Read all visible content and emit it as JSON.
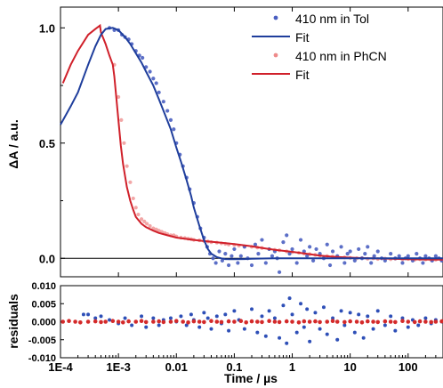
{
  "chart_data": [
    {
      "panel": "main",
      "type": "scatter",
      "ylabel": "ΔA / a.u.",
      "xlabel": "",
      "xscale": "log",
      "xlim": [
        0.0001,
        400
      ],
      "ylim": [
        -0.08,
        1.09
      ],
      "y_ticks": [
        0.0,
        0.5,
        1.0
      ],
      "y_tick_labels": [
        "0.0",
        "0.5",
        "1.0"
      ],
      "zero_line": true,
      "grid": false,
      "legend_position": "top-right",
      "legend": [
        {
          "label": "410 nm in Tol",
          "kind": "points",
          "color": "#4a5fc1"
        },
        {
          "label": "Fit",
          "kind": "line",
          "color": "#1f3e9c"
        },
        {
          "label": "410 nm in PhCN",
          "kind": "points",
          "color": "#ee8a8a"
        },
        {
          "label": "Fit",
          "kind": "line",
          "color": "#d0202a"
        }
      ],
      "series": [
        {
          "name": "410 nm in Tol",
          "kind": "points",
          "color": "#4a5fc1",
          "x": [
            0.0007,
            0.00085,
            0.001,
            0.00115,
            0.0013,
            0.0015,
            0.0017,
            0.002,
            0.0023,
            0.0026,
            0.003,
            0.0035,
            0.004,
            0.0045,
            0.005,
            0.006,
            0.007,
            0.008,
            0.009,
            0.01,
            0.0115,
            0.013,
            0.015,
            0.017,
            0.02,
            0.023,
            0.026,
            0.03,
            0.034,
            0.038,
            0.043,
            0.048,
            0.055,
            0.062,
            0.07,
            0.08,
            0.09,
            0.1,
            0.115,
            0.13,
            0.15,
            0.17,
            0.2,
            0.23,
            0.26,
            0.3,
            0.35,
            0.4,
            0.45,
            0.5,
            0.55,
            0.6,
            0.7,
            0.8,
            0.9,
            1.0,
            1.2,
            1.4,
            1.6,
            1.8,
            2.0,
            2.3,
            2.6,
            3.0,
            3.5,
            4.0,
            4.5,
            5.0,
            6.0,
            7.0,
            8.0,
            9.0,
            10,
            12,
            14,
            16,
            18,
            20,
            23,
            26,
            30,
            35,
            40,
            50,
            60,
            70,
            80,
            90,
            100,
            120,
            140,
            160,
            180,
            200,
            230,
            260,
            300,
            340,
            380
          ],
          "y": [
            1.0,
            0.99,
            0.99,
            0.97,
            0.96,
            0.95,
            0.93,
            0.9,
            0.88,
            0.87,
            0.83,
            0.81,
            0.78,
            0.76,
            0.72,
            0.68,
            0.64,
            0.6,
            0.56,
            0.5,
            0.45,
            0.4,
            0.35,
            0.3,
            0.24,
            0.18,
            0.13,
            0.09,
            0.05,
            0.02,
            0.0,
            -0.02,
            0.03,
            -0.01,
            0.02,
            -0.03,
            0.01,
            0.04,
            -0.02,
            0.01,
            0.05,
            0.0,
            -0.03,
            0.06,
            0.02,
            0.08,
            -0.02,
            0.04,
            0.01,
            0.03,
            0.0,
            -0.06,
            0.07,
            0.1,
            0.02,
            0.04,
            -0.02,
            0.08,
            0.03,
            0.01,
            0.05,
            -0.01,
            0.04,
            0.02,
            0.0,
            0.06,
            -0.03,
            0.03,
            0.01,
            0.05,
            -0.02,
            0.02,
            0.03,
            -0.01,
            0.04,
            0.0,
            0.02,
            0.05,
            -0.02,
            0.01,
            0.03,
            0.0,
            -0.01,
            0.02,
            0.0,
            0.01,
            -0.02,
            0.0,
            0.01,
            -0.01,
            0.02,
            0.0,
            -0.02,
            0.01,
            0.0,
            -0.01,
            0.01,
            0.0,
            -0.01
          ]
        },
        {
          "name": "Fit",
          "kind": "line",
          "color": "#1f3e9c",
          "x": [
            0.0001,
            0.00015,
            0.0002,
            0.0003,
            0.0004,
            0.0005,
            0.0006,
            0.0008,
            0.001,
            0.0013,
            0.0016,
            0.002,
            0.0025,
            0.003,
            0.004,
            0.005,
            0.006,
            0.008,
            0.01,
            0.012,
            0.015,
            0.018,
            0.02,
            0.025,
            0.03,
            0.035,
            0.04,
            0.05,
            0.06,
            0.07,
            0.08,
            0.1,
            0.15,
            0.2,
            0.3,
            0.5,
            1,
            2,
            5,
            10,
            20,
            50,
            100,
            200,
            400
          ],
          "y": [
            0.58,
            0.66,
            0.72,
            0.84,
            0.92,
            0.97,
            0.995,
            1.0,
            0.99,
            0.96,
            0.93,
            0.89,
            0.85,
            0.81,
            0.75,
            0.69,
            0.64,
            0.56,
            0.48,
            0.42,
            0.34,
            0.27,
            0.22,
            0.14,
            0.08,
            0.04,
            0.02,
            0.005,
            0.0,
            -0.003,
            -0.004,
            -0.004,
            -0.003,
            -0.002,
            -0.001,
            0.0,
            0.0,
            0.0,
            0.0,
            0.0,
            0.0,
            0.0,
            0.0,
            0.0,
            0.0
          ]
        },
        {
          "name": "410 nm in PhCN",
          "kind": "points",
          "color": "#ee8a8a",
          "x": [
            0.00085,
            0.001,
            0.00112,
            0.00125,
            0.0014,
            0.0016,
            0.0018,
            0.002,
            0.0022,
            0.0025,
            0.0028,
            0.0031,
            0.0035,
            0.004,
            0.0045,
            0.005,
            0.0056,
            0.0063,
            0.007,
            0.008,
            0.009,
            0.01,
            0.012,
            0.014,
            0.016,
            0.018,
            0.02,
            0.025,
            0.03,
            0.035,
            0.04,
            0.05,
            0.06,
            0.07,
            0.08,
            0.1,
            0.12,
            0.15,
            0.2,
            0.25,
            0.3,
            0.4,
            0.5,
            0.6,
            0.8,
            1.0,
            1.3,
            1.6,
            2.0,
            2.5,
            3.0,
            4.0,
            5.0,
            6.0,
            8.0,
            10,
            13,
            16,
            20,
            25,
            30,
            40,
            50,
            60,
            80,
            100,
            130,
            160,
            200,
            250,
            300,
            380
          ],
          "y": [
            0.84,
            0.7,
            0.6,
            0.5,
            0.4,
            0.33,
            0.26,
            0.22,
            0.19,
            0.17,
            0.16,
            0.15,
            0.14,
            0.13,
            0.125,
            0.12,
            0.115,
            0.11,
            0.105,
            0.1,
            0.1,
            0.095,
            0.09,
            0.088,
            0.085,
            0.083,
            0.08,
            0.078,
            0.075,
            0.073,
            0.07,
            0.068,
            0.065,
            0.063,
            0.06,
            0.058,
            0.055,
            0.052,
            0.05,
            0.047,
            0.045,
            0.04,
            0.037,
            0.035,
            0.03,
            0.027,
            0.024,
            0.021,
            0.018,
            0.015,
            0.012,
            0.01,
            0.008,
            0.006,
            0.004,
            0.002,
            0.0,
            0.001,
            -0.002,
            0.0,
            -0.003,
            -0.001,
            -0.004,
            -0.002,
            -0.005,
            -0.003,
            -0.006,
            -0.004,
            -0.005,
            -0.007,
            -0.006,
            -0.008
          ]
        },
        {
          "name": "Fit",
          "kind": "line",
          "color": "#d0202a",
          "x": [
            0.00011,
            0.00015,
            0.0002,
            0.0003,
            0.0004,
            0.00048,
            0.0005,
            0.0006,
            0.0007,
            0.0008,
            0.00085,
            0.0009,
            0.001,
            0.0011,
            0.0012,
            0.0014,
            0.0016,
            0.0018,
            0.002,
            0.0025,
            0.003,
            0.004,
            0.005,
            0.007,
            0.01,
            0.02,
            0.03,
            0.05,
            0.1,
            0.2,
            0.3,
            0.5,
            1,
            2,
            3,
            5,
            10,
            20,
            50,
            100,
            200,
            400
          ],
          "y": [
            0.76,
            0.84,
            0.9,
            0.97,
            0.995,
            1.01,
            0.98,
            0.93,
            0.88,
            0.84,
            0.79,
            0.72,
            0.6,
            0.49,
            0.41,
            0.31,
            0.25,
            0.21,
            0.18,
            0.15,
            0.135,
            0.12,
            0.11,
            0.1,
            0.09,
            0.08,
            0.075,
            0.07,
            0.062,
            0.052,
            0.045,
            0.037,
            0.028,
            0.018,
            0.012,
            0.007,
            0.003,
            0.0,
            -0.002,
            -0.004,
            -0.005,
            -0.006
          ]
        }
      ]
    },
    {
      "panel": "residuals",
      "type": "scatter",
      "ylabel": "residuals",
      "xlabel": "Time / µs",
      "xscale": "log",
      "xlim": [
        0.0001,
        400
      ],
      "ylim": [
        -0.01,
        0.01
      ],
      "y_ticks": [
        -0.01,
        -0.005,
        0.0,
        0.005,
        0.01
      ],
      "y_tick_labels": [
        "-0.010",
        "-0.005",
        "0.000",
        "0.005",
        "0.010"
      ],
      "x_ticks": [
        0.0001,
        0.001,
        0.01,
        0.1,
        1,
        10,
        100
      ],
      "x_tick_labels": [
        "1E-4",
        "1E-3",
        "0.01",
        "0.1",
        "1",
        "10",
        "100"
      ],
      "grid": false,
      "series": [
        {
          "kind": "points",
          "color": "#2e4fb7",
          "x": [
            0.00025,
            0.0003,
            0.0004,
            0.0005,
            0.0007,
            0.001,
            0.0013,
            0.0017,
            0.002,
            0.0025,
            0.003,
            0.004,
            0.005,
            0.006,
            0.008,
            0.01,
            0.012,
            0.015,
            0.018,
            0.02,
            0.025,
            0.03,
            0.035,
            0.04,
            0.05,
            0.06,
            0.07,
            0.08,
            0.1,
            0.12,
            0.15,
            0.2,
            0.25,
            0.3,
            0.35,
            0.4,
            0.5,
            0.6,
            0.7,
            0.8,
            0.9,
            1.0,
            1.2,
            1.4,
            1.6,
            1.8,
            2.0,
            2.5,
            3.0,
            3.5,
            4.0,
            5.0,
            6.0,
            7.0,
            8.0,
            10,
            12,
            14,
            17,
            20,
            25,
            30,
            40,
            50,
            60,
            80,
            100,
            120,
            150,
            200,
            250,
            300,
            380
          ],
          "y": [
            0.002,
            0.002,
            0.001,
            0.0015,
            0.0005,
            -0.0005,
            0.001,
            -0.001,
            0.0,
            0.0015,
            -0.0015,
            0.001,
            -0.001,
            0.0005,
            0.001,
            0.0,
            0.0015,
            -0.001,
            0.002,
            0.0005,
            -0.0015,
            0.0025,
            0.001,
            -0.002,
            0.0015,
            -0.0005,
            0.002,
            -0.0025,
            0.003,
            0.0005,
            -0.002,
            0.0035,
            -0.003,
            0.0015,
            -0.004,
            0.003,
            0.001,
            -0.0045,
            0.0045,
            -0.006,
            0.0065,
            0.002,
            -0.003,
            0.005,
            -0.0015,
            0.0035,
            -0.0055,
            0.0025,
            -0.002,
            0.004,
            -0.0035,
            0.001,
            -0.005,
            0.003,
            -0.001,
            0.0025,
            -0.003,
            0.002,
            -0.0045,
            0.0015,
            -0.002,
            0.003,
            -0.001,
            0.0015,
            -0.0025,
            0.001,
            -0.0015,
            0.0005,
            -0.001,
            0.001,
            -0.0005,
            0.0005,
            0.0
          ]
        },
        {
          "kind": "points",
          "color": "#d42a2a",
          "x": [
            0.00011,
            0.00014,
            0.00018,
            0.00022,
            0.0003,
            0.0004,
            0.0005,
            0.0006,
            0.0008,
            0.001,
            0.0012,
            0.0015,
            0.002,
            0.0025,
            0.003,
            0.004,
            0.005,
            0.006,
            0.008,
            0.01,
            0.013,
            0.016,
            0.02,
            0.025,
            0.03,
            0.04,
            0.05,
            0.06,
            0.08,
            0.1,
            0.13,
            0.16,
            0.2,
            0.25,
            0.3,
            0.4,
            0.5,
            0.6,
            0.8,
            1.0,
            1.3,
            1.6,
            2.0,
            2.5,
            3.0,
            4.0,
            5.0,
            6.0,
            8.0,
            10,
            13,
            16,
            20,
            25,
            30,
            40,
            50,
            60,
            80,
            100,
            130,
            160,
            200,
            250,
            300,
            380
          ],
          "y": [
            0.0,
            0.0002,
            0.0,
            -0.0002,
            0.0,
            0.0001,
            -0.0001,
            0.0,
            0.0002,
            0.0,
            -0.0002,
            0.0001,
            0.0,
            0.0002,
            -0.0001,
            0.0,
            0.0001,
            -0.0001,
            0.0,
            0.0002,
            0.0,
            -0.0002,
            0.0001,
            0.0,
            -0.0001,
            0.0002,
            0.0,
            -0.0001,
            0.0001,
            0.0,
            0.0002,
            -0.0002,
            0.0001,
            0.0,
            -0.0001,
            0.0002,
            0.0,
            -0.0001,
            0.0001,
            0.0,
            -0.0002,
            0.0001,
            0.0,
            0.0001,
            -0.0001,
            0.0,
            0.0002,
            0.0,
            -0.0001,
            0.0001,
            0.0,
            -0.0002,
            0.0001,
            0.0,
            -0.0001,
            0.0001,
            0.0,
            -0.0001,
            0.0002,
            0.0,
            -0.0001,
            0.0001,
            0.0,
            -0.0001,
            0.0,
            0.0001
          ]
        }
      ]
    }
  ]
}
